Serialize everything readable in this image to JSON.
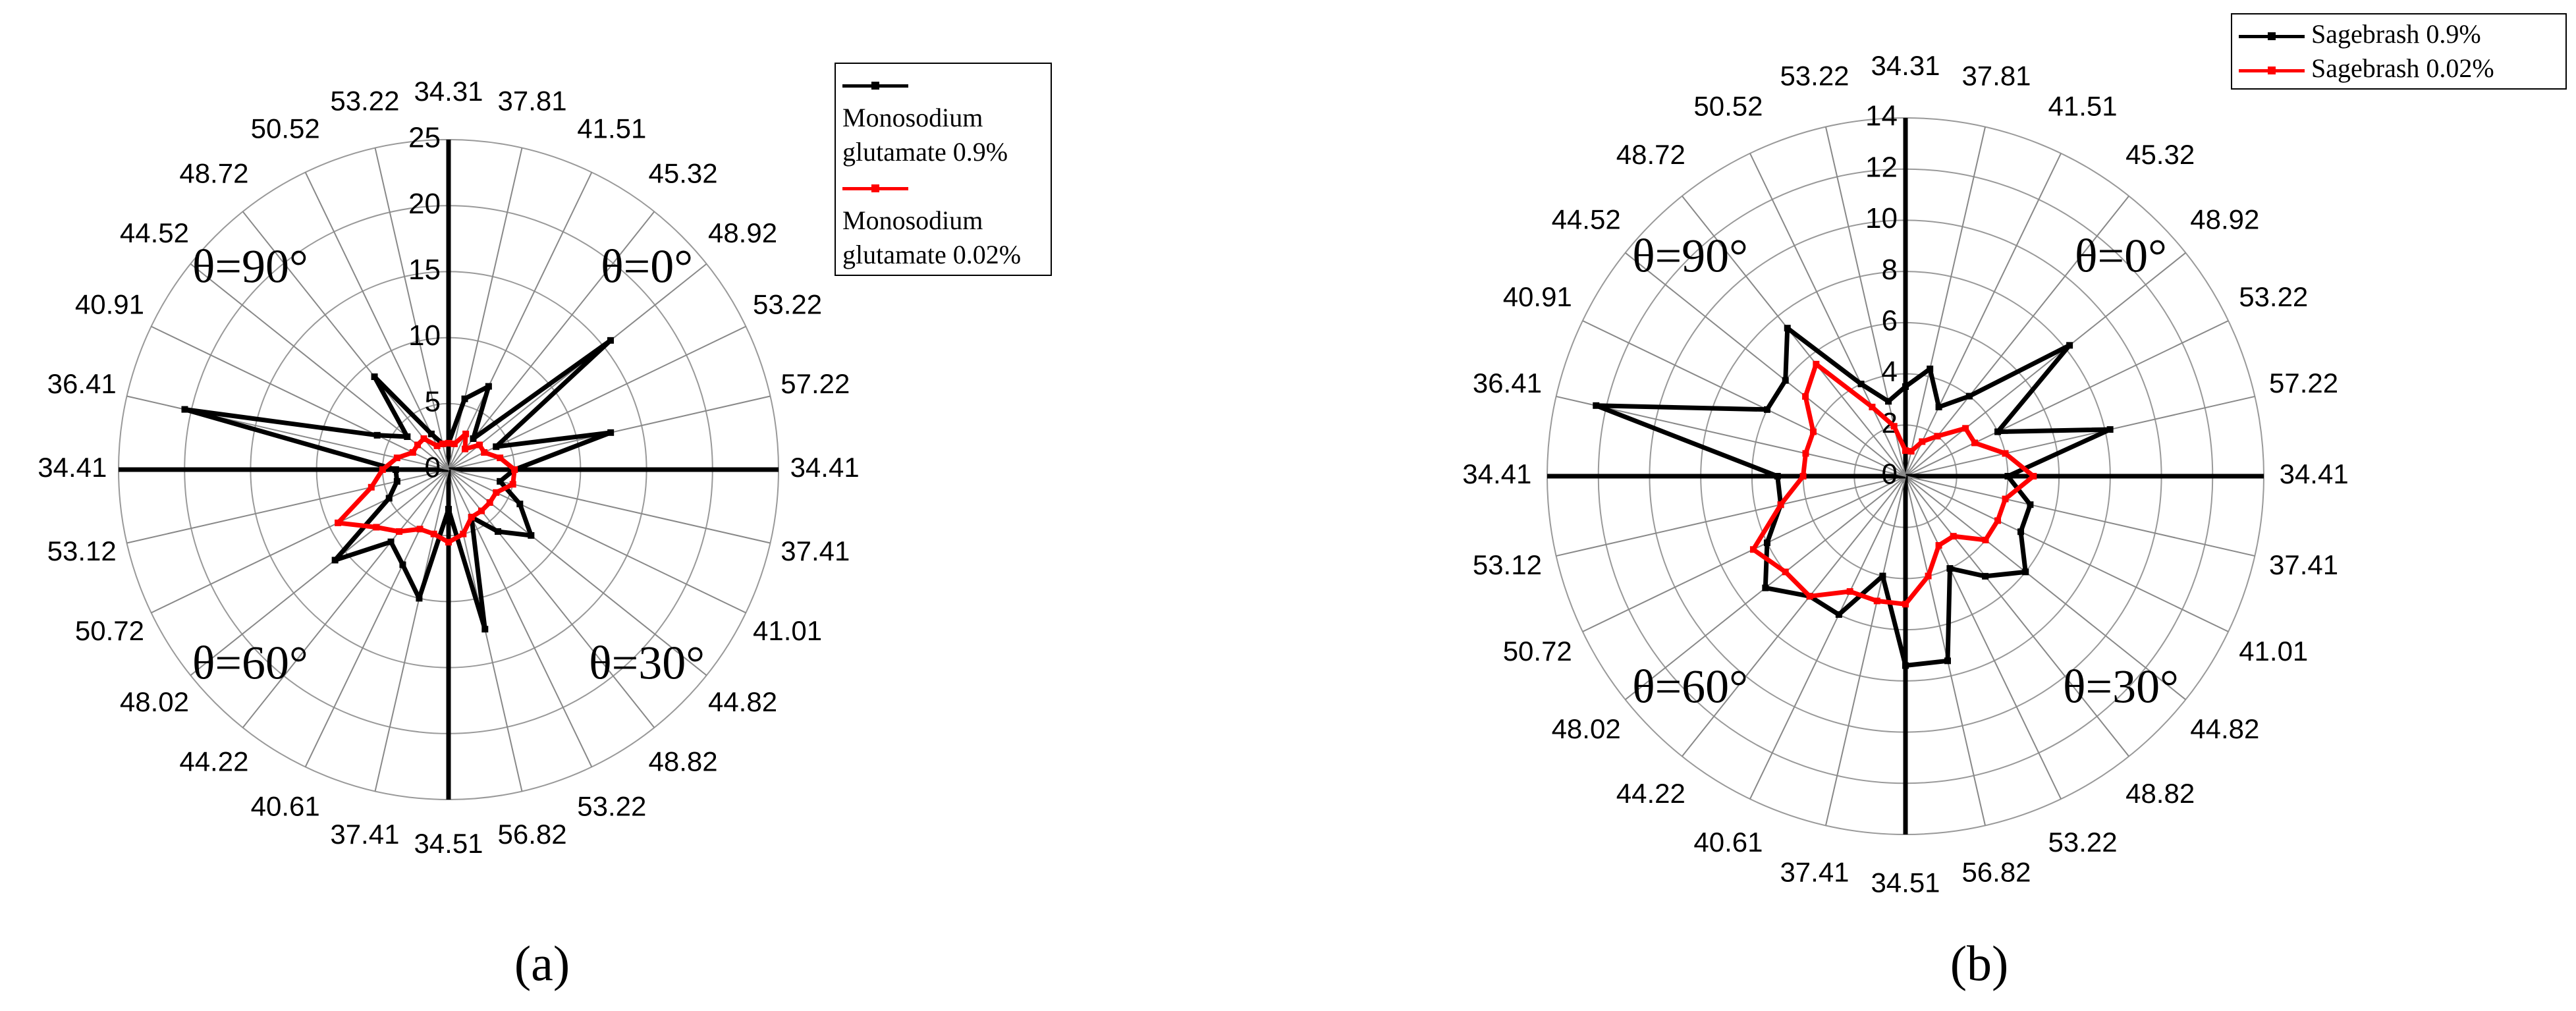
{
  "chart_data": [
    {
      "type": "radar",
      "caption": "(a)",
      "categories": [
        "34.31",
        "37.81",
        "41.51",
        "45.32",
        "48.92",
        "53.22",
        "57.22",
        "34.41",
        "37.41",
        "41.01",
        "44.82",
        "48.82",
        "53.22",
        "56.82",
        "34.51",
        "37.41",
        "40.61",
        "44.22",
        "48.02",
        "50.72",
        "53.12",
        "34.41",
        "36.41",
        "40.91",
        "44.52",
        "48.72",
        "50.52",
        "53.22"
      ],
      "series": [
        {
          "name": "Monosodium glutamate 0.9%",
          "color": "#000000",
          "values": [
            2,
            5.5,
            7,
            3,
            15.7,
            4,
            12.6,
            5,
            4,
            6,
            8,
            6,
            4,
            12.4,
            3,
            10,
            8,
            7,
            11,
            5,
            4,
            4,
            20.5,
            6,
            4,
            9,
            3,
            2
          ]
        },
        {
          "name": "Monosodium glutamate 0.02%",
          "color": "#ff0000",
          "values": [
            2,
            2,
            3,
            2,
            3,
            3,
            4,
            5,
            5,
            4,
            4,
            4,
            4,
            5,
            5.5,
            5,
            5,
            6,
            7,
            9.3,
            6,
            5,
            4,
            3,
            3,
            3,
            2,
            2
          ]
        }
      ],
      "ylim": [
        0,
        25
      ],
      "yticks": [
        0,
        5,
        10,
        15,
        20,
        25
      ],
      "annotations": [
        "θ=0°",
        "θ=30°",
        "θ=60°",
        "θ=90°"
      ]
    },
    {
      "type": "radar",
      "caption": "(b)",
      "categories": [
        "34.31",
        "37.81",
        "41.51",
        "45.32",
        "48.92",
        "53.22",
        "57.22",
        "34.41",
        "37.41",
        "41.01",
        "44.82",
        "48.82",
        "53.22",
        "56.82",
        "34.51",
        "37.41",
        "40.61",
        "44.22",
        "48.02",
        "50.72",
        "53.12",
        "34.41",
        "36.41",
        "40.91",
        "44.52",
        "48.72",
        "50.52",
        "53.22"
      ],
      "series": [
        {
          "name": "Sagebrash 0.9%",
          "color": "#000000",
          "values": [
            3.5,
            4.3,
            3,
            4,
            8.2,
            4,
            8.2,
            4,
            5,
            5,
            6,
            5,
            4,
            7.4,
            7.4,
            4,
            6,
            6,
            7,
            6,
            5,
            5,
            12.4,
            6,
            6,
            7.4,
            4,
            3
          ]
        },
        {
          "name": "Sagebrash 0.02%",
          "color": "#ff0000",
          "values": [
            1,
            1,
            1.5,
            2,
            3,
            3,
            4,
            5,
            4,
            4,
            4,
            3,
            3,
            4,
            5,
            5,
            5,
            6,
            6,
            6.6,
            5,
            4,
            4,
            4,
            5,
            5.6,
            3,
            2
          ]
        }
      ],
      "ylim": [
        0,
        14
      ],
      "yticks": [
        0,
        2,
        4,
        6,
        8,
        10,
        12,
        14
      ],
      "annotations": [
        "θ=0°",
        "θ=30°",
        "θ=60°",
        "θ=90°"
      ]
    }
  ]
}
